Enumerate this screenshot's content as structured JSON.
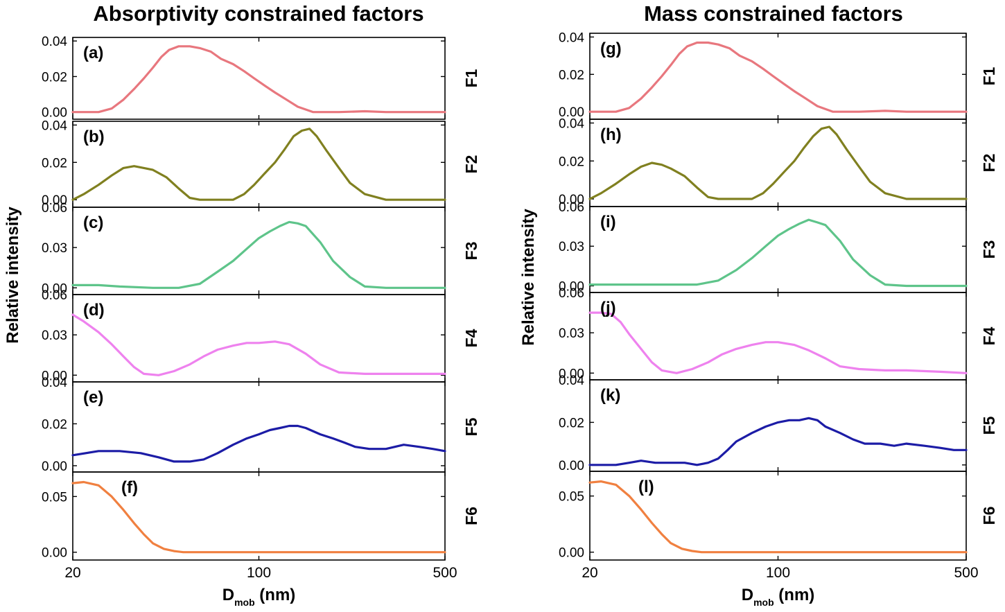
{
  "chart_data": [
    {
      "type": "line",
      "title": "Absorptivity constrained factors",
      "ylabel": "Relative intensity",
      "xlabel": {
        "main": "D",
        "sub": "mob",
        "unit": "(nm)"
      },
      "xscale": "log",
      "xlim": [
        20,
        500
      ],
      "xticks": [
        {
          "value": 20,
          "label": "20"
        },
        {
          "value": 100,
          "label": "100"
        },
        {
          "value": 500,
          "label": "500"
        }
      ],
      "panels": [
        {
          "label": "(a)",
          "factor": "F1",
          "color": "#e8777e",
          "ylim": [
            -0.004,
            0.042
          ],
          "yticks": [
            "0.00",
            "0.02",
            "0.04"
          ],
          "ytick_values": [
            0,
            0.02,
            0.04
          ],
          "x": [
            20,
            25,
            28,
            31,
            34,
            37,
            40,
            43,
            46,
            50,
            55,
            60,
            66,
            72,
            80,
            88,
            96,
            105,
            115,
            127,
            140,
            160,
            180,
            200,
            250,
            300,
            400,
            500
          ],
          "y": [
            0,
            0,
            0.002,
            0.007,
            0.013,
            0.019,
            0.025,
            0.031,
            0.035,
            0.037,
            0.037,
            0.036,
            0.034,
            0.03,
            0.027,
            0.023,
            0.019,
            0.015,
            0.011,
            0.007,
            0.003,
            0,
            0,
            0,
            0.0005,
            0,
            0,
            0
          ]
        },
        {
          "label": "(b)",
          "factor": "F2",
          "color": "#808020",
          "ylim": [
            -0.004,
            0.042
          ],
          "yticks": [
            "0.00",
            "0.02",
            "0.04"
          ],
          "ytick_values": [
            0,
            0.02,
            0.04
          ],
          "x": [
            20,
            22,
            25,
            28,
            31,
            34,
            37,
            40,
            45,
            50,
            55,
            60,
            70,
            80,
            88,
            96,
            105,
            115,
            125,
            135,
            145,
            155,
            165,
            180,
            200,
            220,
            250,
            300,
            400,
            500
          ],
          "y": [
            0,
            0.003,
            0.008,
            0.013,
            0.017,
            0.018,
            0.017,
            0.016,
            0.012,
            0.006,
            0.001,
            0,
            0,
            0,
            0.003,
            0.008,
            0.014,
            0.02,
            0.027,
            0.034,
            0.037,
            0.038,
            0.034,
            0.026,
            0.017,
            0.009,
            0.003,
            0,
            0,
            0
          ]
        },
        {
          "label": "(c)",
          "factor": "F3",
          "color": "#5ec48a",
          "ylim": [
            -0.005,
            0.06
          ],
          "yticks": [
            "0.00",
            "0.03",
            "0.06"
          ],
          "ytick_values": [
            0,
            0.03,
            0.06
          ],
          "x": [
            20,
            25,
            30,
            40,
            50,
            60,
            70,
            80,
            90,
            100,
            110,
            120,
            130,
            140,
            150,
            170,
            190,
            220,
            250,
            300,
            400,
            500
          ],
          "y": [
            0.002,
            0.002,
            0.001,
            0,
            0,
            0.003,
            0.012,
            0.02,
            0.029,
            0.037,
            0.042,
            0.046,
            0.049,
            0.048,
            0.046,
            0.034,
            0.02,
            0.008,
            0.001,
            0,
            0,
            0
          ]
        },
        {
          "label": "(d)",
          "factor": "F4",
          "color": "#ee82ee",
          "ylim": [
            -0.005,
            0.06
          ],
          "yticks": [
            "0.00",
            "0.03",
            "0.06"
          ],
          "ytick_values": [
            0,
            0.03,
            0.06
          ],
          "x": [
            20,
            22,
            25,
            28,
            31,
            34,
            37,
            42,
            48,
            55,
            62,
            70,
            80,
            90,
            100,
            115,
            130,
            150,
            170,
            200,
            250,
            300,
            400,
            500
          ],
          "y": [
            0.045,
            0.04,
            0.032,
            0.023,
            0.014,
            0.006,
            0.001,
            0,
            0.003,
            0.008,
            0.014,
            0.019,
            0.022,
            0.024,
            0.024,
            0.025,
            0.023,
            0.016,
            0.008,
            0.002,
            0.001,
            0.001,
            0.001,
            0.001
          ]
        },
        {
          "label": "(e)",
          "factor": "F5",
          "color": "#1c1ca6",
          "ylim": [
            -0.003,
            0.04
          ],
          "yticks": [
            "0.00",
            "0.02",
            "0.04"
          ],
          "ytick_values": [
            0,
            0.02,
            0.04
          ],
          "x": [
            20,
            25,
            30,
            36,
            42,
            48,
            55,
            62,
            70,
            80,
            90,
            100,
            110,
            120,
            130,
            140,
            150,
            170,
            190,
            210,
            230,
            260,
            300,
            350,
            400,
            450,
            500
          ],
          "y": [
            0.005,
            0.007,
            0.007,
            0.006,
            0.004,
            0.002,
            0.002,
            0.003,
            0.006,
            0.01,
            0.013,
            0.015,
            0.017,
            0.018,
            0.019,
            0.019,
            0.018,
            0.015,
            0.013,
            0.011,
            0.009,
            0.008,
            0.008,
            0.01,
            0.009,
            0.008,
            0.007
          ]
        },
        {
          "label": "(f)",
          "factor": "F6",
          "color": "#f08040",
          "ylim": [
            -0.007,
            0.072
          ],
          "yticks": [
            "0.00",
            "0.05"
          ],
          "ytick_values": [
            0,
            0.05
          ],
          "x": [
            20,
            22,
            25,
            28,
            31,
            34,
            37,
            40,
            44,
            48,
            52,
            56,
            60,
            66,
            75,
            90,
            120,
            200,
            500
          ],
          "y": [
            0.062,
            0.063,
            0.06,
            0.05,
            0.038,
            0.026,
            0.016,
            0.008,
            0.003,
            0.001,
            0,
            0,
            0,
            0,
            0,
            0,
            0,
            0,
            0
          ]
        }
      ]
    },
    {
      "type": "line",
      "title": "Mass constrained factors",
      "ylabel": "Relative intensity",
      "xlabel": {
        "main": "D",
        "sub": "mob",
        "unit": "(nm)"
      },
      "xscale": "log",
      "xlim": [
        20,
        500
      ],
      "xticks": [
        {
          "value": 20,
          "label": "20"
        },
        {
          "value": 100,
          "label": "100"
        },
        {
          "value": 500,
          "label": "500"
        }
      ],
      "panels": [
        {
          "label": "(g)",
          "factor": "F1",
          "color": "#e8777e",
          "ylim": [
            -0.004,
            0.042
          ],
          "yticks": [
            "0.00",
            "0.02",
            "0.04"
          ],
          "ytick_values": [
            0,
            0.02,
            0.04
          ],
          "x": [
            20,
            25,
            28,
            31,
            34,
            37,
            40,
            43,
            46,
            50,
            55,
            60,
            66,
            72,
            80,
            88,
            96,
            105,
            115,
            127,
            140,
            160,
            180,
            200,
            250,
            300,
            400,
            500
          ],
          "y": [
            0,
            0,
            0.002,
            0.007,
            0.013,
            0.019,
            0.025,
            0.031,
            0.035,
            0.037,
            0.037,
            0.036,
            0.034,
            0.03,
            0.027,
            0.023,
            0.019,
            0.015,
            0.011,
            0.007,
            0.003,
            0,
            0,
            0,
            0.0005,
            0,
            0,
            0
          ]
        },
        {
          "label": "(h)",
          "factor": "F2",
          "color": "#808020",
          "ylim": [
            -0.004,
            0.042
          ],
          "yticks": [
            "0.00",
            "0.02",
            "0.04"
          ],
          "ytick_values": [
            0,
            0.02,
            0.04
          ],
          "x": [
            20,
            22,
            25,
            28,
            31,
            34,
            37,
            40,
            45,
            50,
            55,
            60,
            70,
            80,
            88,
            96,
            105,
            115,
            125,
            135,
            145,
            155,
            165,
            180,
            200,
            220,
            250,
            300,
            400,
            500
          ],
          "y": [
            0,
            0.003,
            0.008,
            0.013,
            0.017,
            0.019,
            0.018,
            0.016,
            0.012,
            0.006,
            0.001,
            0,
            0,
            0,
            0.003,
            0.008,
            0.014,
            0.02,
            0.027,
            0.033,
            0.037,
            0.038,
            0.034,
            0.026,
            0.017,
            0.009,
            0.003,
            0,
            0,
            0
          ]
        },
        {
          "label": "(i)",
          "factor": "F3",
          "color": "#5ec48a",
          "ylim": [
            -0.005,
            0.06
          ],
          "yticks": [
            "0.00",
            "0.03",
            "0.06"
          ],
          "ytick_values": [
            0,
            0.03,
            0.06
          ],
          "x": [
            20,
            25,
            30,
            40,
            50,
            60,
            70,
            80,
            90,
            100,
            110,
            120,
            130,
            140,
            150,
            170,
            190,
            220,
            250,
            300,
            400,
            500
          ],
          "y": [
            0.001,
            0.001,
            0.001,
            0.001,
            0.001,
            0.004,
            0.012,
            0.021,
            0.03,
            0.038,
            0.043,
            0.047,
            0.05,
            0.048,
            0.046,
            0.034,
            0.02,
            0.008,
            0.001,
            0,
            0,
            0
          ]
        },
        {
          "label": "(j)",
          "factor": "F4",
          "color": "#ee82ee",
          "ylim": [
            -0.005,
            0.06
          ],
          "yticks": [
            "0.00",
            "0.03",
            "0.06"
          ],
          "ytick_values": [
            0,
            0.03,
            0.06
          ],
          "x": [
            20,
            22,
            24,
            26,
            28,
            31,
            34,
            37,
            42,
            48,
            55,
            62,
            70,
            80,
            90,
            100,
            115,
            130,
            150,
            170,
            200,
            250,
            300,
            400,
            500
          ],
          "y": [
            0.045,
            0.045,
            0.044,
            0.038,
            0.029,
            0.018,
            0.008,
            0.002,
            0,
            0.003,
            0.008,
            0.014,
            0.018,
            0.021,
            0.023,
            0.023,
            0.021,
            0.017,
            0.011,
            0.005,
            0.003,
            0.002,
            0.002,
            0.001,
            0
          ]
        },
        {
          "label": "(k)",
          "factor": "F5",
          "color": "#1c1ca6",
          "ylim": [
            -0.003,
            0.04
          ],
          "yticks": [
            "0.00",
            "0.02",
            "0.04"
          ],
          "ytick_values": [
            0,
            0.02,
            0.04
          ],
          "x": [
            20,
            25,
            28,
            31,
            35,
            40,
            45,
            50,
            55,
            60,
            65,
            70,
            80,
            90,
            100,
            110,
            120,
            130,
            140,
            150,
            170,
            190,
            210,
            240,
            270,
            300,
            350,
            400,
            450,
            500
          ],
          "y": [
            0,
            0,
            0.001,
            0.002,
            0.001,
            0.001,
            0.001,
            0,
            0.001,
            0.003,
            0.007,
            0.011,
            0.015,
            0.018,
            0.02,
            0.021,
            0.021,
            0.022,
            0.021,
            0.018,
            0.015,
            0.012,
            0.01,
            0.01,
            0.009,
            0.01,
            0.009,
            0.008,
            0.007,
            0.007
          ]
        },
        {
          "label": "(l)",
          "factor": "F6",
          "color": "#f08040",
          "ylim": [
            -0.007,
            0.072
          ],
          "yticks": [
            "0.00",
            "0.05"
          ],
          "ytick_values": [
            0,
            0.05
          ],
          "x": [
            20,
            22,
            25,
            28,
            31,
            34,
            37,
            40,
            44,
            48,
            52,
            56,
            60,
            66,
            75,
            90,
            120,
            200,
            500
          ],
          "y": [
            0.062,
            0.063,
            0.06,
            0.05,
            0.038,
            0.026,
            0.016,
            0.008,
            0.003,
            0.001,
            0,
            0,
            0,
            0,
            0,
            0,
            0,
            0,
            0
          ]
        }
      ]
    }
  ]
}
